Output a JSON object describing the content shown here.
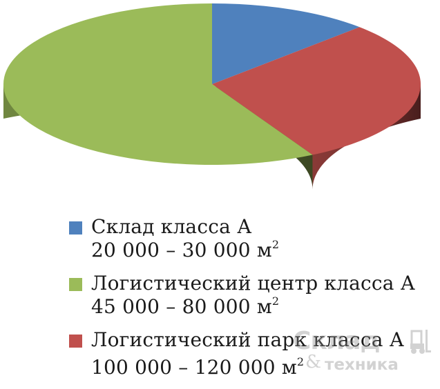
{
  "chart_data": {
    "type": "pie",
    "style": "3d",
    "legend_position": "bottom",
    "slices": [
      {
        "name": "Склад класса А",
        "range": "20 000 – 30 000 м",
        "unit_sup": "2",
        "value": 12.5,
        "color": "#4f81bd"
      },
      {
        "name": "Логистический парк класса А",
        "range": "100 000 – 120 000 м",
        "unit_sup": "2",
        "value": 29.5,
        "color": "#c0504d"
      },
      {
        "name": "Логистический центр класса А",
        "range": "45 000 – 80 000 м",
        "unit_sup": "2",
        "value": 58,
        "color": "#9bbb59"
      }
    ],
    "legend_order": [
      0,
      2,
      1
    ]
  },
  "watermark": {
    "line1": "Склад",
    "amp": "&",
    "line2": "техника",
    "icon": "forklift-icon"
  }
}
